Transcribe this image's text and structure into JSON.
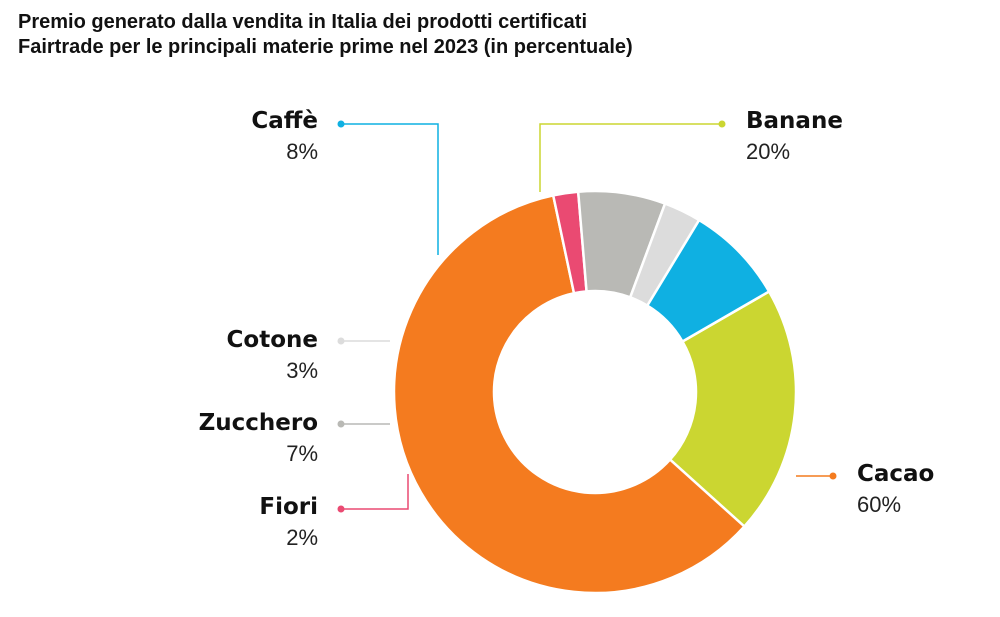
{
  "title": {
    "line1": "Premio generato dalla vendita in Italia dei prodotti certificati",
    "line2": "Fairtrade per le principali materie prime nel 2023 (in percentuale)"
  },
  "chart_data": {
    "type": "pie",
    "variant": "donut",
    "title": "Premio generato dalla vendita in Italia dei prodotti certificati Fairtrade per le principali materie prime nel 2023 (in percentuale)",
    "unit": "%",
    "slices": [
      {
        "label": "Banane",
        "value": 20,
        "value_label": "20%",
        "color": "#cbd631"
      },
      {
        "label": "Cacao",
        "value": 60,
        "value_label": "60%",
        "color": "#f47b1f"
      },
      {
        "label": "Fiori",
        "value": 2,
        "value_label": "2%",
        "color": "#ea4a72"
      },
      {
        "label": "Zucchero",
        "value": 7,
        "value_label": "7%",
        "color": "#b9b9b5"
      },
      {
        "label": "Cotone",
        "value": 3,
        "value_label": "3%",
        "color": "#dcdcdc"
      },
      {
        "label": "Caffè",
        "value": 8,
        "value_label": "8%",
        "color": "#0fb0e2"
      }
    ]
  }
}
